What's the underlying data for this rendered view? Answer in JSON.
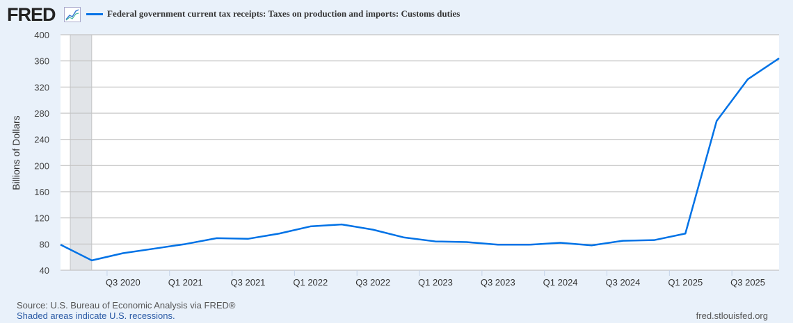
{
  "header": {
    "logo": "FRED",
    "title": "Federal government current tax receipts: Taxes on production and imports: Customs duties"
  },
  "footer": {
    "source": "Source: U.S. Bureau of Economic Analysis via FRED®",
    "shaded": "Shaded areas indicate U.S. recessions.",
    "url": "fred.stlouisfed.org"
  },
  "colors": {
    "line": "#0072e6",
    "recession": "#e1e4e8",
    "grid": "#c4c4c4"
  },
  "chart_data": {
    "type": "line",
    "title": "Federal government current tax receipts: Taxes on production and imports: Customs duties",
    "ylabel": "Billions of Dollars",
    "xlabel": "",
    "ylim": [
      40,
      400
    ],
    "yticks": [
      40,
      80,
      120,
      160,
      200,
      240,
      280,
      320,
      360,
      400
    ],
    "xtick_labels": [
      "Q3 2020",
      "Q1 2021",
      "Q3 2021",
      "Q1 2022",
      "Q3 2022",
      "Q1 2023",
      "Q3 2023",
      "Q1 2024",
      "Q3 2024",
      "Q1 2025",
      "Q3 2025"
    ],
    "recessions": [
      [
        "Q1 2020",
        "Q2 2020"
      ]
    ],
    "x": [
      "Q1 2020",
      "Q2 2020",
      "Q3 2020",
      "Q4 2020",
      "Q1 2021",
      "Q2 2021",
      "Q3 2021",
      "Q4 2021",
      "Q1 2022",
      "Q2 2022",
      "Q3 2022",
      "Q4 2022",
      "Q1 2023",
      "Q2 2023",
      "Q3 2023",
      "Q4 2023",
      "Q1 2024",
      "Q2 2024",
      "Q3 2024",
      "Q4 2024",
      "Q1 2025",
      "Q2 2025",
      "Q3 2025",
      "Q4 2025"
    ],
    "series": [
      {
        "name": "Customs duties",
        "values": [
          79,
          55,
          66,
          73,
          80,
          89,
          88,
          96,
          107,
          110,
          102,
          90,
          84,
          83,
          79,
          79,
          82,
          78,
          85,
          86,
          96,
          268,
          332,
          364
        ]
      }
    ],
    "grid": true,
    "legend": "top-left"
  }
}
